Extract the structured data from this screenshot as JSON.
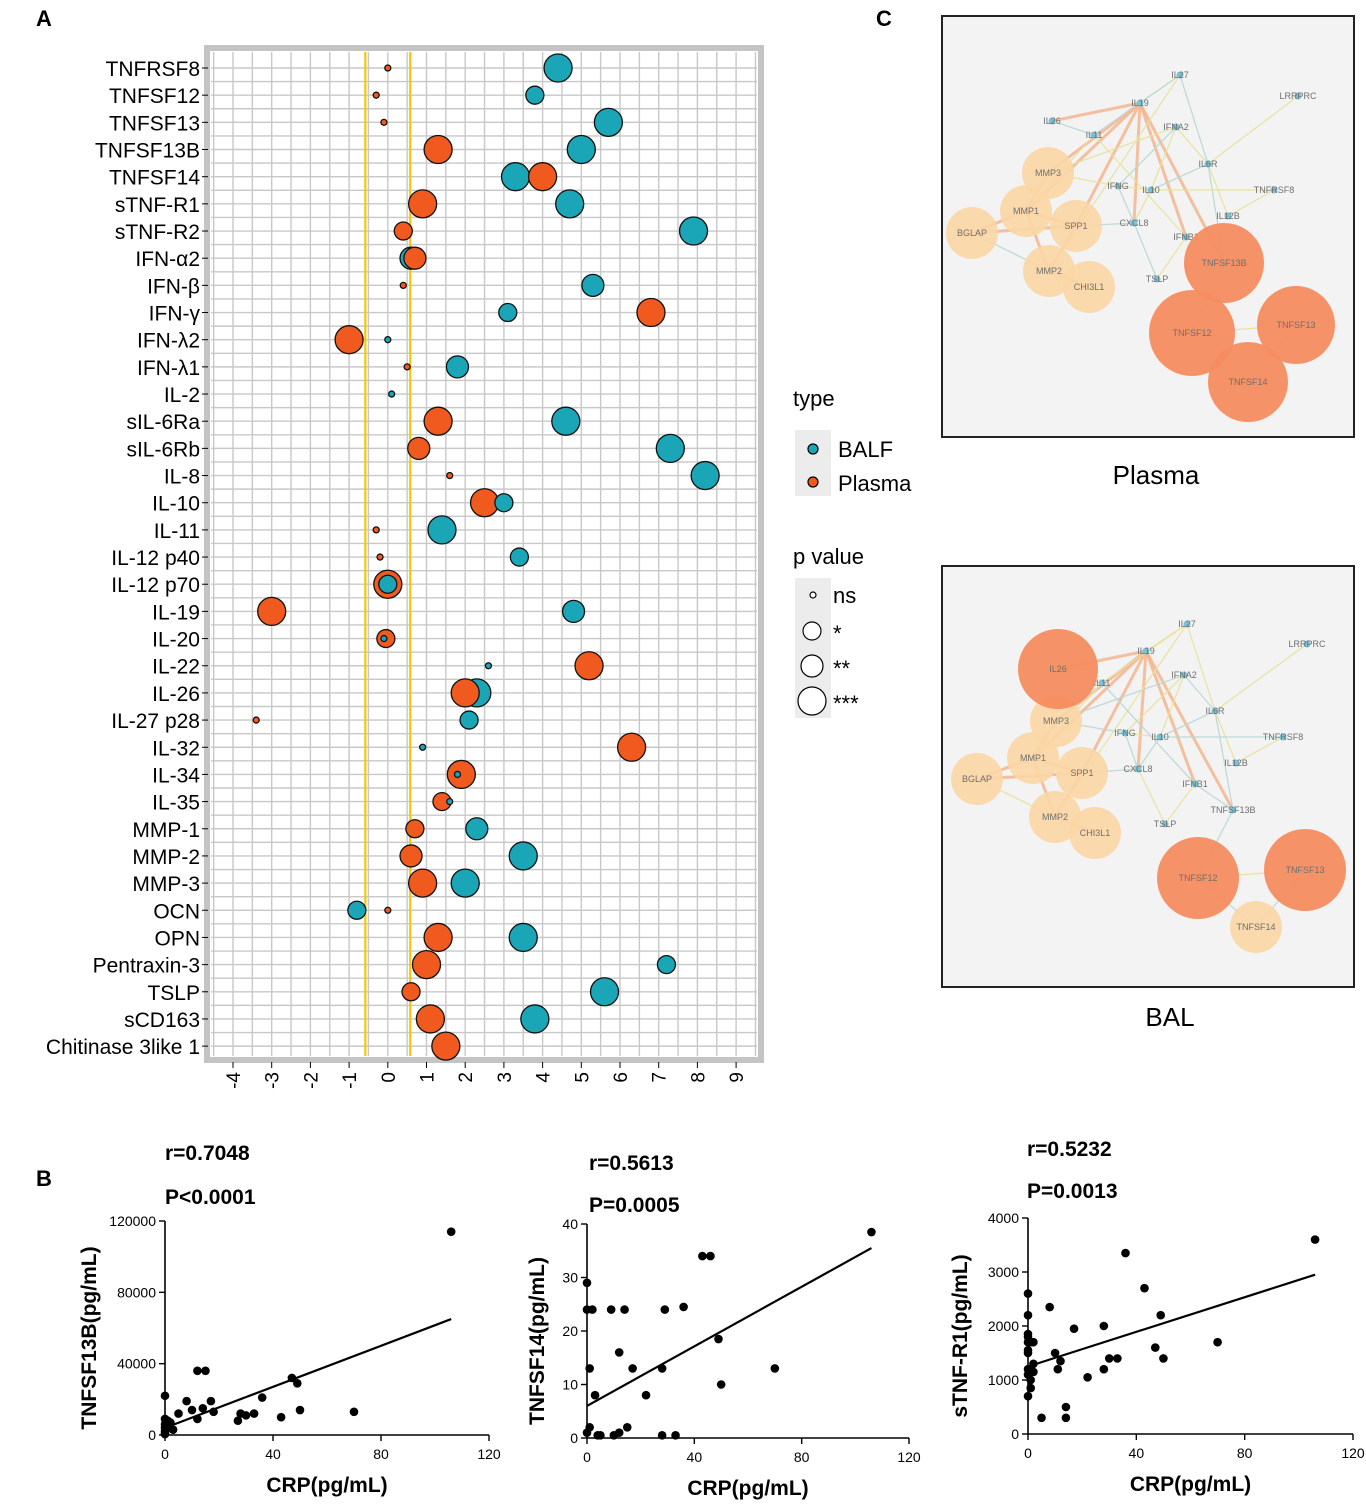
{
  "panels": {
    "a": "A",
    "b": "B",
    "c": "C"
  },
  "colors": {
    "balf": "#1aa6b7",
    "plasma": "#f05a1e",
    "vline": "#f6c700",
    "grid": "#c8c8c8",
    "net_large": "#f58c5f",
    "net_small": "#fbd6a4"
  },
  "chart_data": [
    {
      "id": "bubble",
      "type": "scatter",
      "xlim": [
        -4.5,
        9.5
      ],
      "xticks": [
        -4,
        -3,
        -2,
        -1,
        0,
        1,
        2,
        3,
        4,
        5,
        6,
        7,
        8,
        9
      ],
      "reference_lines": [
        -0.58,
        0.58
      ],
      "categories": [
        "TNFRSF8",
        "TNFSF12",
        "TNFSF13",
        "TNFSF13B",
        "TNFSF14",
        "sTNF-R1",
        "sTNF-R2",
        "IFN-α2",
        "IFN-β",
        "IFN-γ",
        "IFN-λ2",
        "IFN-λ1",
        "IL-2",
        "sIL-6Ra",
        "sIL-6Rb",
        "IL-8",
        "IL-10",
        "IL-11",
        "IL-12 p40",
        "IL-12 p70",
        "IL-19",
        "IL-20",
        "IL-22",
        "IL-26",
        "IL-27 p28",
        "IL-32",
        "IL-34",
        "IL-35",
        "MMP-1",
        "MMP-2",
        "MMP-3",
        "OCN",
        "OPN",
        "Pentraxin-3",
        "TSLP",
        "sCD163",
        "Chitinase 3like 1"
      ],
      "series": [
        {
          "name": "BALF",
          "points": [
            {
              "cat": "TNFRSF8",
              "x": 4.4,
              "p": "***"
            },
            {
              "cat": "TNFSF12",
              "x": 3.8,
              "p": "*"
            },
            {
              "cat": "TNFSF13",
              "x": 5.7,
              "p": "***"
            },
            {
              "cat": "TNFSF13B",
              "x": 5.0,
              "p": "***"
            },
            {
              "cat": "TNFSF14",
              "x": 3.3,
              "p": "***"
            },
            {
              "cat": "sTNF-R1",
              "x": 4.7,
              "p": "***"
            },
            {
              "cat": "sTNF-R2",
              "x": 7.9,
              "p": "***"
            },
            {
              "cat": "IFN-α2",
              "x": 0.6,
              "p": "**"
            },
            {
              "cat": "IFN-β",
              "x": 5.3,
              "p": "**"
            },
            {
              "cat": "IFN-γ",
              "x": 3.1,
              "p": "*"
            },
            {
              "cat": "IFN-λ2",
              "x": 0.0,
              "p": "ns"
            },
            {
              "cat": "IFN-λ1",
              "x": 1.8,
              "p": "**"
            },
            {
              "cat": "IL-2",
              "x": 0.1,
              "p": "ns"
            },
            {
              "cat": "sIL-6Ra",
              "x": 4.6,
              "p": "***"
            },
            {
              "cat": "sIL-6Rb",
              "x": 7.3,
              "p": "***"
            },
            {
              "cat": "IL-8",
              "x": 8.2,
              "p": "***"
            },
            {
              "cat": "IL-10",
              "x": 3.0,
              "p": "*"
            },
            {
              "cat": "IL-11",
              "x": 1.4,
              "p": "***"
            },
            {
              "cat": "IL-12 p40",
              "x": 3.4,
              "p": "*"
            },
            {
              "cat": "IL-12 p70",
              "x": 0.0,
              "p": "*"
            },
            {
              "cat": "IL-19",
              "x": 4.8,
              "p": "**"
            },
            {
              "cat": "IL-20",
              "x": -0.1,
              "p": "ns"
            },
            {
              "cat": "IL-22",
              "x": 2.6,
              "p": "ns"
            },
            {
              "cat": "IL-26",
              "x": 2.3,
              "p": "***"
            },
            {
              "cat": "IL-27 p28",
              "x": 2.1,
              "p": "*"
            },
            {
              "cat": "IL-32",
              "x": 0.9,
              "p": "ns"
            },
            {
              "cat": "IL-34",
              "x": 1.8,
              "p": "ns"
            },
            {
              "cat": "IL-35",
              "x": 1.6,
              "p": "ns"
            },
            {
              "cat": "MMP-1",
              "x": 2.3,
              "p": "**"
            },
            {
              "cat": "MMP-2",
              "x": 3.5,
              "p": "***"
            },
            {
              "cat": "MMP-3",
              "x": 2.0,
              "p": "***"
            },
            {
              "cat": "OCN",
              "x": -0.8,
              "p": "*"
            },
            {
              "cat": "OPN",
              "x": 3.5,
              "p": "***"
            },
            {
              "cat": "Pentraxin-3",
              "x": 7.2,
              "p": "*"
            },
            {
              "cat": "TSLP",
              "x": 5.6,
              "p": "***"
            },
            {
              "cat": "sCD163",
              "x": 3.8,
              "p": "***"
            }
          ]
        },
        {
          "name": "Plasma",
          "points": [
            {
              "cat": "TNFRSF8",
              "x": 0.0,
              "p": "ns"
            },
            {
              "cat": "TNFSF12",
              "x": -0.3,
              "p": "ns"
            },
            {
              "cat": "TNFSF13",
              "x": -0.1,
              "p": "ns"
            },
            {
              "cat": "TNFSF13B",
              "x": 1.3,
              "p": "***"
            },
            {
              "cat": "TNFSF14",
              "x": 4.0,
              "p": "***"
            },
            {
              "cat": "sTNF-R1",
              "x": 0.9,
              "p": "***"
            },
            {
              "cat": "sTNF-R2",
              "x": 0.4,
              "p": "*"
            },
            {
              "cat": "IFN-α2",
              "x": 0.7,
              "p": "**"
            },
            {
              "cat": "IFN-β",
              "x": 0.4,
              "p": "ns"
            },
            {
              "cat": "IFN-γ",
              "x": 6.8,
              "p": "***"
            },
            {
              "cat": "IFN-λ2",
              "x": -1.0,
              "p": "***"
            },
            {
              "cat": "IFN-λ1",
              "x": 0.5,
              "p": "ns"
            },
            {
              "cat": "sIL-6Ra",
              "x": 1.3,
              "p": "***"
            },
            {
              "cat": "sIL-6Rb",
              "x": 0.8,
              "p": "**"
            },
            {
              "cat": "IL-8",
              "x": 1.6,
              "p": "ns"
            },
            {
              "cat": "IL-10",
              "x": 2.5,
              "p": "***"
            },
            {
              "cat": "IL-11",
              "x": -0.3,
              "p": "ns"
            },
            {
              "cat": "IL-12 p40",
              "x": -0.2,
              "p": "ns"
            },
            {
              "cat": "IL-12 p70",
              "x": 0.0,
              "p": "***"
            },
            {
              "cat": "IL-19",
              "x": -3.0,
              "p": "***"
            },
            {
              "cat": "IL-20",
              "x": -0.05,
              "p": "*"
            },
            {
              "cat": "IL-22",
              "x": 5.2,
              "p": "***"
            },
            {
              "cat": "IL-26",
              "x": 2.0,
              "p": "***"
            },
            {
              "cat": "IL-27 p28",
              "x": -3.4,
              "p": "ns"
            },
            {
              "cat": "IL-32",
              "x": 6.3,
              "p": "***"
            },
            {
              "cat": "IL-34",
              "x": 1.9,
              "p": "***"
            },
            {
              "cat": "IL-35",
              "x": 1.4,
              "p": "*"
            },
            {
              "cat": "MMP-1",
              "x": 0.7,
              "p": "*"
            },
            {
              "cat": "MMP-2",
              "x": 0.6,
              "p": "**"
            },
            {
              "cat": "MMP-3",
              "x": 0.9,
              "p": "***"
            },
            {
              "cat": "OCN",
              "x": 0.0,
              "p": "ns"
            },
            {
              "cat": "OPN",
              "x": 1.3,
              "p": "***"
            },
            {
              "cat": "Pentraxin-3",
              "x": 1.0,
              "p": "***"
            },
            {
              "cat": "TSLP",
              "x": 0.6,
              "p": "*"
            },
            {
              "cat": "sCD163",
              "x": 1.1,
              "p": "***"
            },
            {
              "cat": "Chitinase 3like 1",
              "x": 1.5,
              "p": "***"
            }
          ]
        }
      ],
      "legend": {
        "type_title": "type",
        "types": [
          "BALF",
          "Plasma"
        ],
        "p_title": "p value",
        "p_levels": [
          "ns",
          "*",
          "**",
          "***"
        ],
        "position": "right"
      }
    },
    {
      "id": "scatter1",
      "type": "scatter",
      "r": "r=0.7048",
      "p": "P<0.0001",
      "xlabel": "CRP(pg/mL)",
      "ylabel": "TNFSF13B(pg/mL)",
      "xlim": [
        0,
        120
      ],
      "ylim": [
        0,
        120000
      ],
      "xticks": [
        0,
        40,
        80,
        120
      ],
      "yticks": [
        0,
        40000,
        80000,
        120000
      ],
      "fit": [
        [
          0,
          4000
        ],
        [
          106,
          65000
        ]
      ],
      "points": [
        [
          0,
          22000
        ],
        [
          0,
          9000
        ],
        [
          0,
          6000
        ],
        [
          0,
          4000
        ],
        [
          0,
          2000
        ],
        [
          0,
          1000
        ],
        [
          0,
          500
        ],
        [
          1,
          8000
        ],
        [
          1,
          5000
        ],
        [
          2,
          7000
        ],
        [
          3,
          3000
        ],
        [
          5,
          12000
        ],
        [
          8,
          19000
        ],
        [
          10,
          14000
        ],
        [
          12,
          9000
        ],
        [
          12,
          36000
        ],
        [
          14,
          15000
        ],
        [
          15,
          36000
        ],
        [
          17,
          19000
        ],
        [
          18,
          13000
        ],
        [
          27,
          8000
        ],
        [
          28,
          12000
        ],
        [
          30,
          11000
        ],
        [
          33,
          12000
        ],
        [
          36,
          21000
        ],
        [
          43,
          10000
        ],
        [
          47,
          32000
        ],
        [
          49,
          29000
        ],
        [
          50,
          14000
        ],
        [
          70,
          13000
        ],
        [
          106,
          114000
        ]
      ]
    },
    {
      "id": "scatter2",
      "type": "scatter",
      "r": "r=0.5613",
      "p": "P=0.0005",
      "xlabel": "CRP(pg/mL)",
      "ylabel": "TNFSF14(pg/mL)",
      "xlim": [
        0,
        120
      ],
      "ylim": [
        0,
        40
      ],
      "xticks": [
        0,
        40,
        80,
        120
      ],
      "yticks": [
        0,
        10,
        20,
        30,
        40
      ],
      "fit": [
        [
          0,
          6
        ],
        [
          106,
          35.5
        ]
      ],
      "points": [
        [
          0,
          29
        ],
        [
          0,
          24
        ],
        [
          0,
          1
        ],
        [
          1,
          13
        ],
        [
          1,
          2
        ],
        [
          2,
          24
        ],
        [
          3,
          8
        ],
        [
          4,
          0.5
        ],
        [
          5,
          0.5
        ],
        [
          9,
          24
        ],
        [
          10,
          0.5
        ],
        [
          12,
          16
        ],
        [
          12,
          1
        ],
        [
          14,
          24
        ],
        [
          15,
          2
        ],
        [
          17,
          13
        ],
        [
          22,
          8
        ],
        [
          28,
          0.5
        ],
        [
          28,
          13
        ],
        [
          29,
          24
        ],
        [
          33,
          0.5
        ],
        [
          36,
          24.5
        ],
        [
          43,
          34
        ],
        [
          46,
          34
        ],
        [
          49,
          18.5
        ],
        [
          50,
          10
        ],
        [
          70,
          13
        ],
        [
          106,
          38.5
        ]
      ]
    },
    {
      "id": "scatter3",
      "type": "scatter",
      "r": "r=0.5232",
      "p": "P=0.0013",
      "xlabel": "CRP(pg/mL)",
      "ylabel": "sTNF-R1(pg/mL)",
      "xlim": [
        0,
        120
      ],
      "ylim": [
        0,
        4000
      ],
      "xticks": [
        0,
        40,
        80,
        120
      ],
      "yticks": [
        0,
        1000,
        2000,
        3000,
        4000
      ],
      "fit": [
        [
          0,
          1250
        ],
        [
          106,
          2950
        ]
      ],
      "points": [
        [
          0,
          2600
        ],
        [
          0,
          2200
        ],
        [
          0,
          1850
        ],
        [
          0,
          1800
        ],
        [
          0,
          1700
        ],
        [
          0,
          1550
        ],
        [
          0,
          1500
        ],
        [
          0,
          1200
        ],
        [
          0,
          1100
        ],
        [
          0,
          700
        ],
        [
          1,
          1700
        ],
        [
          1,
          1000
        ],
        [
          1,
          850
        ],
        [
          2,
          1700
        ],
        [
          2,
          1300
        ],
        [
          2,
          1150
        ],
        [
          5,
          300
        ],
        [
          8,
          2350
        ],
        [
          10,
          1500
        ],
        [
          11,
          1200
        ],
        [
          12,
          1350
        ],
        [
          14,
          300
        ],
        [
          14,
          500
        ],
        [
          17,
          1950
        ],
        [
          22,
          1050
        ],
        [
          28,
          2000
        ],
        [
          28,
          1200
        ],
        [
          30,
          1400
        ],
        [
          33,
          1400
        ],
        [
          36,
          3350
        ],
        [
          43,
          2700
        ],
        [
          47,
          1600
        ],
        [
          49,
          2200
        ],
        [
          50,
          1400
        ],
        [
          70,
          1700
        ],
        [
          106,
          3600
        ]
      ]
    }
  ],
  "network": {
    "plasma": {
      "caption": "Plasma",
      "nodes": [
        "IL27",
        "IL19",
        "IL26",
        "IL11",
        "IFNA2",
        "LRRPRC",
        "IL6R",
        "MMP3",
        "IFNG",
        "IL10",
        "TNFRSF8",
        "MMP1",
        "SPP1",
        "CXCL8",
        "IL12B",
        "BGLAP",
        "IFNB1",
        "TNFSF13B",
        "MMP2",
        "TSLP",
        "CHI3L1",
        "TNFSF12",
        "TNFSF13",
        "TNFSF14"
      ]
    },
    "bal": {
      "caption": "BAL",
      "nodes": [
        "IL27",
        "IL19",
        "IL26",
        "IL11",
        "IFNA2",
        "LRRPRC",
        "IL6R",
        "MMP3",
        "IFNG",
        "IL10",
        "TNFRSF8",
        "MMP1",
        "SPP1",
        "CXCL8",
        "IL12B",
        "BGLAP",
        "IFNB1",
        "TNFSF13B",
        "MMP2",
        "TSLP",
        "CHI3L1",
        "TNFSF12",
        "TNFSF13",
        "TNFSF14"
      ]
    }
  }
}
